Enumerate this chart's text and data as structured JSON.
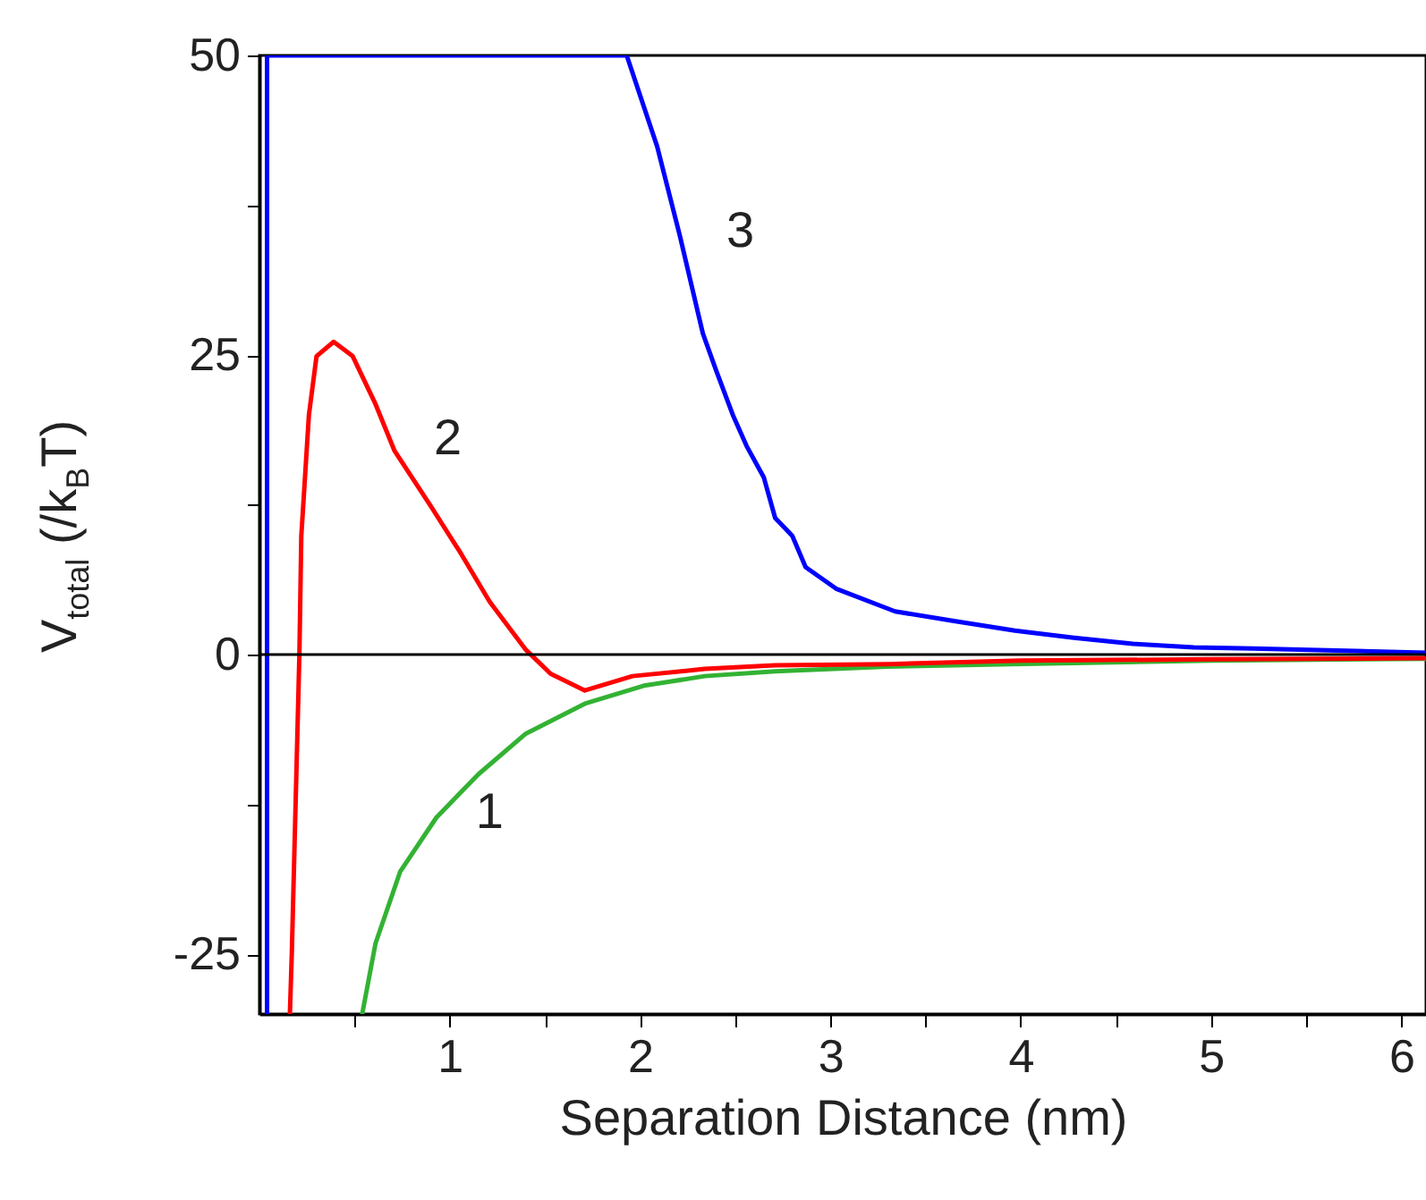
{
  "chart_data": {
    "type": "line",
    "xlabel": "Separation Distance (nm)",
    "ylabel": "V$_{total}$ (/k$_{B}$T)",
    "xlim": [
      0,
      6.13
    ],
    "ylim": [
      -30,
      50
    ],
    "xticks": [
      {
        "value": 0.5,
        "label": null
      },
      1,
      {
        "value": 1.5,
        "label": null
      },
      2,
      {
        "value": 2.5,
        "label": null
      },
      3,
      {
        "value": 3.5,
        "label": null
      },
      4,
      {
        "value": 4.5,
        "label": null
      },
      5,
      {
        "value": 5.5,
        "label": null
      },
      6
    ],
    "yticks": [
      -25,
      {
        "value": -12.5,
        "label": null
      },
      0,
      {
        "value": 12.5,
        "label": null
      },
      25,
      {
        "value": 37.5,
        "label": null
      },
      50
    ],
    "grid": false,
    "marker": "none",
    "line_style": "solid",
    "ref_lines": [
      {
        "axis": "y",
        "value": 0,
        "color": "#000000"
      }
    ],
    "series": [
      {
        "name": "1",
        "color": "#33b233",
        "x": [
          0.54,
          0.61,
          0.74,
          0.93,
          1.15,
          1.4,
          1.71,
          2.02,
          2.34,
          2.71,
          3.3,
          3.95,
          5.0,
          6.13
        ],
        "values": [
          -30,
          -24.1,
          -18.1,
          -13.6,
          -10,
          -6.6,
          -4.1,
          -2.6,
          -1.8,
          -1.4,
          -1.0,
          -0.8,
          -0.5,
          -0.35
        ]
      },
      {
        "name": "2",
        "color": "#ff0000",
        "x": [
          0.16,
          0.17,
          0.21,
          0.22,
          0.26,
          0.3,
          0.39,
          0.49,
          0.61,
          0.71,
          0.9,
          1.06,
          1.21,
          1.4,
          1.53,
          1.71,
          1.96,
          2.34,
          2.71,
          3.31,
          4.0,
          5.0,
          6.13
        ],
        "values": [
          -30,
          -25,
          0,
          9.9,
          20,
          24.9,
          26.1,
          24.9,
          20.9,
          17,
          12.4,
          8.4,
          4.4,
          0.4,
          -1.6,
          -3,
          -1.8,
          -1.2,
          -0.9,
          -0.8,
          -0.5,
          -0.4,
          -0.3
        ]
      },
      {
        "name": "3",
        "color": "#0000ff",
        "x": [
          0.04,
          0.04,
          1.93,
          2.09,
          2.21,
          2.33,
          2.4,
          2.49,
          2.56,
          2.65,
          2.71,
          2.8,
          2.87,
          3.03,
          3.34,
          3.65,
          3.97,
          4.28,
          4.59,
          4.91,
          5.22,
          5.76,
          6.13
        ],
        "values": [
          -30,
          50,
          50,
          42.4,
          34.9,
          26.8,
          23.7,
          19.9,
          17.4,
          14.8,
          11.4,
          9.9,
          7.3,
          5.5,
          3.6,
          2.8,
          2.0,
          1.4,
          0.9,
          0.6,
          0.5,
          0.3,
          0.15
        ]
      }
    ]
  }
}
